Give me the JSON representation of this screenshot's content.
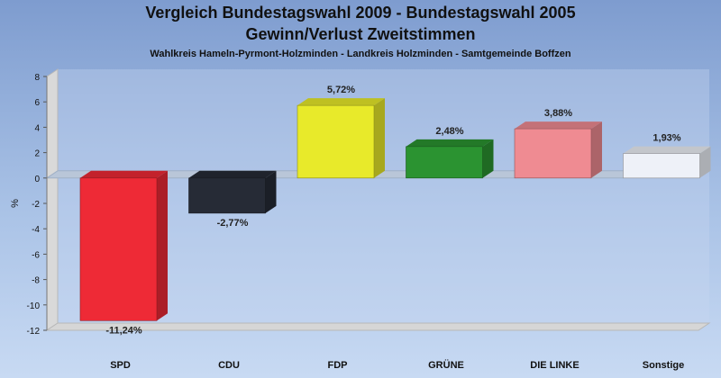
{
  "chart_data": {
    "type": "bar",
    "title": "Vergleich Bundestagswahl 2009 - Bundestagswahl 2005",
    "subtitle": "Gewinn/Verlust Zweitstimmen",
    "caption": "Wahlkreis Hameln-Pyrmont-Holzminden - Landkreis Holzminden - Samtgemeinde Boffzen",
    "ylabel": "%",
    "xlabel": "",
    "ylim": [
      -12,
      8
    ],
    "yticks": [
      8,
      6,
      4,
      2,
      0,
      -2,
      -4,
      -6,
      -8,
      -10,
      -12
    ],
    "grid": false,
    "legend": "none",
    "categories": [
      "SPD",
      "CDU",
      "FDP",
      "GRÜNE",
      "DIE LINKE",
      "Sonstige"
    ],
    "values": [
      -11.24,
      -2.77,
      5.72,
      2.48,
      3.88,
      1.93
    ],
    "value_labels": [
      "-11,24%",
      "-2,77%",
      "5,72%",
      "2,48%",
      "3,88%",
      "1,93%"
    ],
    "colors": [
      "#ee2a36",
      "#262b36",
      "#e8ea2a",
      "#2b9331",
      "#ef8b92",
      "#eef1f8"
    ]
  }
}
